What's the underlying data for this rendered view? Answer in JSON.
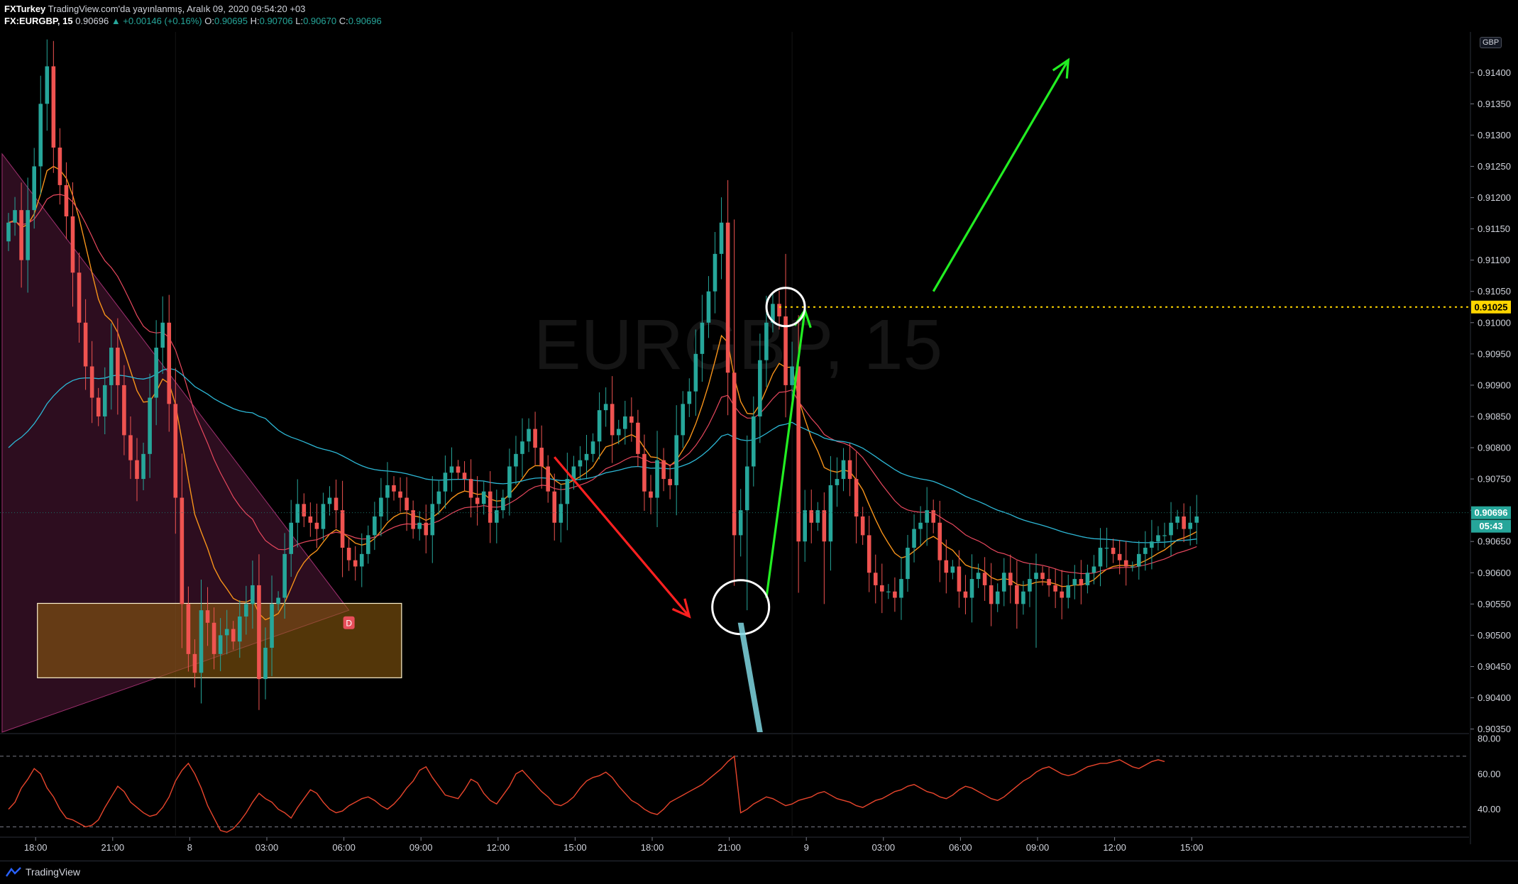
{
  "header": {
    "publisher": "FXTurkey",
    "published_text": "TradingView.com'da yayınlanmış, Aralık 09, 2020 09:54:20 +03",
    "symbol": "FX:EURGBP, 15",
    "last": "0.90696",
    "change": "▲ +0.00146 (+0.16%)",
    "o_label": "O:",
    "o_value": "0.90695",
    "h_label": "H:",
    "h_value": "0.90706",
    "l_label": "L:",
    "l_value": "0.90670",
    "c_label": "C:",
    "c_value": "0.90696"
  },
  "watermark": {
    "text": "EURGBP, 15"
  },
  "currency_badge": "GBP",
  "price_badges": {
    "hline_price": "0.91025",
    "last_price": "0.90696",
    "countdown": "05:43",
    "pattern_marker": "D"
  },
  "footer": {
    "brand": "TradingView",
    "logo_icon": "tradingview-logo-icon"
  },
  "colors": {
    "background": "#000000",
    "up_candle": "#26a69a",
    "down_candle": "#ef5350",
    "ema_fast": "#f7931a",
    "ema_mid": "#e8485e",
    "ema_slow": "#2db8d6",
    "rsi": "#e8452c",
    "zone_fill": "#8b5a0f",
    "triangle_fill": "#a03070",
    "green_arrow": "#22ee22",
    "red_arrow": "#ff2020",
    "hline": "#ffd600"
  },
  "chart_data": [
    {
      "type": "candlestick",
      "title": "EURGBP, 15",
      "price_axis_ticks": [
        "0.91400",
        "0.91350",
        "0.91300",
        "0.91250",
        "0.91200",
        "0.91150",
        "0.91100",
        "0.91050",
        "0.91000",
        "0.90950",
        "0.90900",
        "0.90850",
        "0.90800",
        "0.90750",
        "0.90700",
        "0.90650",
        "0.90600",
        "0.90550",
        "0.90500",
        "0.90450",
        "0.90400",
        "0.90350"
      ],
      "time_axis_ticks": [
        "18:00",
        "21:00",
        "8",
        "03:00",
        "06:00",
        "09:00",
        "12:00",
        "15:00",
        "18:00",
        "21:00",
        "9",
        "03:00",
        "06:00",
        "09:00",
        "12:00",
        "15:00"
      ],
      "ylim": [
        0.90345,
        0.91465
      ],
      "horizontal_line": 0.91025,
      "last_price": 0.90696,
      "zone": {
        "x_start": 4.5,
        "x_end": 61.2,
        "y_low": 0.90432,
        "y_high": 0.90551
      },
      "close": [
        0.9116,
        0.9118,
        0.911,
        0.9118,
        0.9125,
        0.9135,
        0.9141,
        0.9128,
        0.9122,
        0.9117,
        0.9108,
        0.91,
        0.9093,
        0.9088,
        0.9085,
        0.909,
        0.9096,
        0.909,
        0.9082,
        0.9078,
        0.9075,
        0.9079,
        0.9088,
        0.9096,
        0.91,
        0.9087,
        0.9072,
        0.9055,
        0.9047,
        0.9044,
        0.9054,
        0.9052,
        0.9047,
        0.905,
        0.9051,
        0.9049,
        0.9053,
        0.9055,
        0.9058,
        0.9043,
        0.9048,
        0.9055,
        0.9056,
        0.9063,
        0.9068,
        0.9071,
        0.9069,
        0.9068,
        0.9067,
        0.9071,
        0.9072,
        0.907,
        0.9064,
        0.9062,
        0.9061,
        0.9063,
        0.9066,
        0.9069,
        0.9072,
        0.9074,
        0.9073,
        0.9072,
        0.907,
        0.9067,
        0.9068,
        0.9066,
        0.9071,
        0.9073,
        0.9076,
        0.9077,
        0.9076,
        0.9075,
        0.9072,
        0.9071,
        0.9073,
        0.9068,
        0.907,
        0.9072,
        0.9077,
        0.9079,
        0.9081,
        0.9083,
        0.908,
        0.9077,
        0.9073,
        0.9068,
        0.9071,
        0.9075,
        0.9077,
        0.9078,
        0.9079,
        0.9081,
        0.9086,
        0.9087,
        0.9082,
        0.9083,
        0.9085,
        0.9084,
        0.9079,
        0.9073,
        0.9072,
        0.9078,
        0.9075,
        0.9074,
        0.9082,
        0.9087,
        0.9089,
        0.9095,
        0.91,
        0.9105,
        0.9111,
        0.9116,
        0.9092,
        0.9066,
        0.907,
        0.9077,
        0.9085,
        0.9094,
        0.91,
        0.9103,
        0.9101,
        0.909,
        0.9093,
        0.9065,
        0.907,
        0.9068,
        0.907,
        0.9065,
        0.9074,
        0.9075,
        0.9078,
        0.9075,
        0.9069,
        0.9066,
        0.906,
        0.9058,
        0.9057,
        0.9057,
        0.9056,
        0.9059,
        0.9064,
        0.9067,
        0.9068,
        0.907,
        0.9068,
        0.9062,
        0.906,
        0.9061,
        0.9057,
        0.9056,
        0.9059,
        0.906,
        0.9058,
        0.9055,
        0.9057,
        0.906,
        0.9058,
        0.9055,
        0.9057,
        0.9059,
        0.906,
        0.9059,
        0.9058,
        0.9057,
        0.9056,
        0.9058,
        0.9059,
        0.9058,
        0.906,
        0.9061,
        0.9064,
        0.9064,
        0.9063,
        0.9062,
        0.9061,
        0.9061,
        0.9063,
        0.9064,
        0.9065,
        0.9066,
        0.9066,
        0.9068,
        0.9069,
        0.9067,
        0.9068,
        0.9069
      ]
    },
    {
      "type": "line",
      "name": "RSI",
      "ylim": [
        25,
        82
      ],
      "axis_ticks": [
        "80.00",
        "60.00",
        "40.00"
      ],
      "levels": [
        70,
        30
      ],
      "values": [
        40,
        44,
        52,
        57,
        63,
        60,
        52,
        47,
        40,
        35,
        34,
        32,
        30,
        31,
        34,
        41,
        47,
        53,
        50,
        44,
        41,
        38,
        36,
        37,
        41,
        47,
        56,
        62,
        66,
        60,
        52,
        42,
        35,
        28,
        27,
        29,
        33,
        38,
        44,
        49,
        46,
        44,
        40,
        38,
        35,
        41,
        46,
        51,
        49,
        44,
        40,
        38,
        39,
        42,
        44,
        46,
        47,
        45,
        42,
        40,
        43,
        47,
        52,
        56,
        62,
        64,
        58,
        53,
        48,
        47,
        46,
        51,
        57,
        55,
        49,
        45,
        43,
        48,
        53,
        60,
        62,
        58,
        54,
        50,
        47,
        43,
        42,
        44,
        47,
        52,
        56,
        58,
        59,
        61,
        58,
        53,
        49,
        45,
        43,
        40,
        38,
        37,
        40,
        44,
        46,
        48,
        50,
        52,
        54,
        57,
        60,
        63,
        67,
        70,
        38,
        40,
        43,
        45,
        47,
        46,
        44,
        42,
        43,
        45,
        46,
        47,
        49,
        50,
        48,
        46,
        45,
        44,
        42,
        41,
        43,
        45,
        46,
        48,
        50,
        51,
        53,
        54,
        52,
        50,
        49,
        47,
        46,
        48,
        51,
        53,
        52,
        50,
        48,
        46,
        45,
        47,
        50,
        53,
        56,
        58,
        61,
        63,
        64,
        62,
        60,
        59,
        60,
        62,
        64,
        65,
        66,
        66,
        67,
        68,
        66,
        64,
        63,
        65,
        67,
        68,
        67
      ]
    }
  ]
}
